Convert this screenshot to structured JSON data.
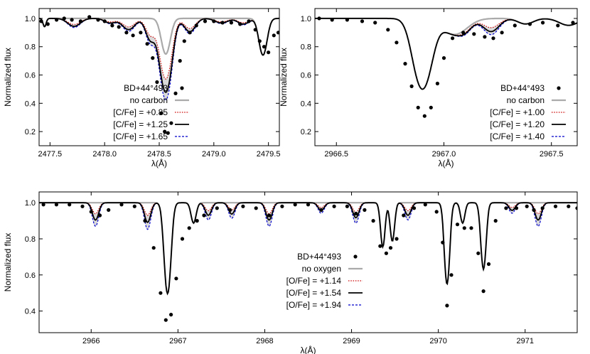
{
  "chart_data": [
    {
      "type": "line",
      "panel": "top-left",
      "xlabel": "λ(Å)",
      "ylabel": "Normalized flux",
      "xlim": [
        2477.4,
        2479.6
      ],
      "ylim": [
        0.1,
        1.07
      ],
      "xticks": [
        2477.5,
        2478.0,
        2478.5,
        2479.0,
        2479.5
      ],
      "xtick_labels": [
        "2477.5",
        "2478.0",
        "2478.5",
        "2479.0",
        "2479.5"
      ],
      "yticks": [
        0.2,
        0.4,
        0.6,
        0.8,
        1.0
      ],
      "ytick_labels": [
        "0.2",
        "0.4",
        "0.6",
        "0.8",
        "1.0"
      ],
      "legend_position": "lower-left",
      "shaded_band": true,
      "reference": {
        "name": "no carbon",
        "color": "#aaaaaa",
        "lines": [
          {
            "c": 2478.56,
            "w": 0.055,
            "d": 0.29
          }
        ]
      },
      "series": [
        {
          "name": "[C/Fe] = +0.85",
          "color": "#cc0000",
          "dash": "1.5,1.8",
          "scale": 0.62
        },
        {
          "name": "[C/Fe] = +1.25",
          "color": "#000000",
          "dash": "",
          "scale": 0.82
        },
        {
          "name": "[C/Fe] = +1.65",
          "color": "#0000cc",
          "dash": "3,2",
          "scale": 0.95
        }
      ],
      "lines": [
        {
          "c": 2477.72,
          "w": 0.08,
          "d": 0.07
        },
        {
          "c": 2478.05,
          "w": 0.07,
          "d": 0.04
        },
        {
          "c": 2478.22,
          "w": 0.08,
          "d": 0.1
        },
        {
          "c": 2478.42,
          "w": 0.06,
          "d": 0.2
        },
        {
          "c": 2478.56,
          "w": 0.07,
          "d": 0.9
        },
        {
          "c": 2478.78,
          "w": 0.07,
          "d": 0.12
        },
        {
          "c": 2479.07,
          "w": 0.08,
          "d": 0.04
        },
        {
          "c": 2479.27,
          "w": 0.07,
          "d": 0.05
        }
      ],
      "points": [
        [
          2477.42,
          0.98
        ],
        [
          2477.48,
          0.96
        ],
        [
          2477.56,
          0.99
        ],
        [
          2477.63,
          1.0
        ],
        [
          2477.7,
          0.99
        ],
        [
          2477.78,
          0.98
        ],
        [
          2477.86,
          1.01
        ],
        [
          2477.94,
          0.99
        ],
        [
          2478.0,
          0.98
        ],
        [
          2478.07,
          0.95
        ],
        [
          2478.13,
          0.94
        ],
        [
          2478.2,
          0.9
        ],
        [
          2478.26,
          0.88
        ],
        [
          2478.33,
          0.9
        ],
        [
          2478.39,
          0.82
        ],
        [
          2478.44,
          0.72
        ],
        [
          2478.48,
          0.55
        ],
        [
          2478.52,
          0.33
        ],
        [
          2478.55,
          0.2
        ],
        [
          2478.58,
          0.19
        ],
        [
          2478.61,
          0.26
        ],
        [
          2478.65,
          0.47
        ],
        [
          2478.69,
          0.7
        ],
        [
          2478.73,
          0.84
        ],
        [
          2478.78,
          0.9
        ],
        [
          2478.84,
          0.95
        ],
        [
          2478.92,
          0.98
        ],
        [
          2479.0,
          0.98
        ],
        [
          2479.08,
          0.97
        ],
        [
          2479.16,
          0.97
        ],
        [
          2479.24,
          0.96
        ],
        [
          2479.32,
          0.98
        ],
        [
          2479.38,
          0.92
        ],
        [
          2479.42,
          0.84
        ],
        [
          2479.46,
          0.8
        ],
        [
          2479.5,
          0.76
        ],
        [
          2479.55,
          0.88
        ],
        [
          2479.59,
          0.9
        ]
      ],
      "strong_lines": [
        {
          "c": 2479.45,
          "w": 0.05,
          "d": 0.3
        },
        {
          "c": 2477.45,
          "w": 0.02,
          "d": 0.06
        }
      ],
      "legend": [
        "BD+44°493",
        "no carbon",
        "[C/Fe] = +0.85",
        "[C/Fe] = +1.25",
        "[C/Fe] = +1.65"
      ]
    },
    {
      "type": "line",
      "panel": "top-right",
      "xlabel": "λ(Å)",
      "ylabel": "Normalized flux",
      "xlim": [
        2966.4,
        2967.62
      ],
      "ylim": [
        0.1,
        1.07
      ],
      "xticks": [
        2966.5,
        2967.0,
        2967.5
      ],
      "xtick_labels": [
        "2966.5",
        "2967.0",
        "2967.5"
      ],
      "yticks": [
        0.2,
        0.4,
        0.6,
        0.8,
        1.0
      ],
      "ytick_labels": [
        "0.2",
        "0.4",
        "0.6",
        "0.8",
        "1.0"
      ],
      "legend_position": "lower-right",
      "shaded_band": true,
      "reference": {
        "name": "no carbon",
        "color": "#aaaaaa",
        "lines": []
      },
      "series": [
        {
          "name": "[C/Fe] = +1.00",
          "color": "#cc0000",
          "dash": "1.5,1.8",
          "scale": 0.55
        },
        {
          "name": "[C/Fe] = +1.20",
          "color": "#000000",
          "dash": "",
          "scale": 0.8
        },
        {
          "name": "[C/Fe] = +1.40",
          "color": "#0000cc",
          "dash": "3,2",
          "scale": 1.0
        }
      ],
      "lines": [
        {
          "c": 2967.22,
          "w": 0.05,
          "d": 0.12
        },
        {
          "c": 2967.1,
          "w": 0.04,
          "d": 0.04
        }
      ],
      "strong_lines": [
        {
          "c": 2966.9,
          "w": 0.055,
          "d": 0.69
        },
        {
          "c": 2967.05,
          "w": 0.08,
          "d": 0.12
        },
        {
          "c": 2967.38,
          "w": 0.05,
          "d": 0.04
        },
        {
          "c": 2967.58,
          "w": 0.06,
          "d": 0.05
        }
      ],
      "points": [
        [
          2966.42,
          1.0
        ],
        [
          2966.48,
          0.99
        ],
        [
          2966.55,
          0.99
        ],
        [
          2966.62,
          0.98
        ],
        [
          2966.68,
          0.97
        ],
        [
          2966.74,
          0.92
        ],
        [
          2966.78,
          0.83
        ],
        [
          2966.82,
          0.68
        ],
        [
          2966.85,
          0.52
        ],
        [
          2966.88,
          0.37
        ],
        [
          2966.91,
          0.31
        ],
        [
          2966.94,
          0.37
        ],
        [
          2966.97,
          0.54
        ],
        [
          2967.0,
          0.72
        ],
        [
          2967.04,
          0.86
        ],
        [
          2967.09,
          0.9
        ],
        [
          2967.14,
          0.89
        ],
        [
          2967.19,
          0.87
        ],
        [
          2967.23,
          0.86
        ],
        [
          2967.27,
          0.9
        ],
        [
          2967.33,
          0.95
        ],
        [
          2967.4,
          0.96
        ],
        [
          2967.46,
          0.97
        ],
        [
          2967.53,
          0.95
        ],
        [
          2967.6,
          0.97
        ]
      ],
      "legend": [
        "BD+44°493",
        "no carbon",
        "[C/Fe] = +1.00",
        "[C/Fe] = +1.20",
        "[C/Fe] = +1.40"
      ]
    },
    {
      "type": "line",
      "panel": "bottom",
      "xlabel": "λ(Å)",
      "ylabel": "Normalized flux",
      "xlim": [
        2965.4,
        2971.6
      ],
      "ylim": [
        0.28,
        1.06
      ],
      "xticks": [
        2966,
        2967,
        2968,
        2969,
        2970,
        2971
      ],
      "xtick_labels": [
        "2966",
        "2967",
        "2968",
        "2969",
        "2970",
        "2971"
      ],
      "yticks": [
        0.4,
        0.6,
        0.8,
        1.0
      ],
      "ytick_labels": [
        "0.4",
        "0.6",
        "0.8",
        "1.0"
      ],
      "legend_position": "center",
      "shaded_band": true,
      "reference": {
        "name": "no oxygen",
        "color": "#aaaaaa",
        "lines": []
      },
      "series": [
        {
          "name": "[O/Fe] = +1.14",
          "color": "#cc0000",
          "dash": "1.5,1.8",
          "scale": 0.45
        },
        {
          "name": "[O/Fe] = +1.54",
          "color": "#000000",
          "dash": "",
          "scale": 0.72
        },
        {
          "name": "[O/Fe] = +1.94",
          "color": "#0000cc",
          "dash": "3,2",
          "scale": 1.0
        }
      ],
      "lines": [
        {
          "c": 2966.05,
          "w": 0.05,
          "d": 0.14
        },
        {
          "c": 2966.65,
          "w": 0.05,
          "d": 0.16
        },
        {
          "c": 2967.35,
          "w": 0.05,
          "d": 0.1
        },
        {
          "c": 2967.62,
          "w": 0.05,
          "d": 0.09
        },
        {
          "c": 2968.05,
          "w": 0.05,
          "d": 0.14
        },
        {
          "c": 2968.65,
          "w": 0.05,
          "d": 0.06
        },
        {
          "c": 2969.05,
          "w": 0.05,
          "d": 0.12
        },
        {
          "c": 2969.65,
          "w": 0.05,
          "d": 0.1
        },
        {
          "c": 2970.85,
          "w": 0.05,
          "d": 0.06
        },
        {
          "c": 2971.15,
          "w": 0.05,
          "d": 0.14
        }
      ],
      "strong_lines": [
        {
          "c": 2966.88,
          "w": 0.05,
          "d": 0.7
        },
        {
          "c": 2967.18,
          "w": 0.04,
          "d": 0.12
        },
        {
          "c": 2969.36,
          "w": 0.035,
          "d": 0.28
        },
        {
          "c": 2969.47,
          "w": 0.035,
          "d": 0.24
        },
        {
          "c": 2970.1,
          "w": 0.04,
          "d": 0.6
        },
        {
          "c": 2970.28,
          "w": 0.035,
          "d": 0.12
        },
        {
          "c": 2970.52,
          "w": 0.04,
          "d": 0.46
        }
      ],
      "points": [
        [
          2965.45,
          0.99
        ],
        [
          2965.6,
          0.99
        ],
        [
          2965.75,
          0.99
        ],
        [
          2965.9,
          0.98
        ],
        [
          2966.0,
          0.95
        ],
        [
          2966.1,
          0.93
        ],
        [
          2966.2,
          0.96
        ],
        [
          2966.35,
          0.99
        ],
        [
          2966.5,
          0.98
        ],
        [
          2966.62,
          0.9
        ],
        [
          2966.72,
          0.75
        ],
        [
          2966.8,
          0.5
        ],
        [
          2966.86,
          0.35
        ],
        [
          2966.92,
          0.38
        ],
        [
          2966.98,
          0.58
        ],
        [
          2967.05,
          0.8
        ],
        [
          2967.13,
          0.86
        ],
        [
          2967.22,
          0.9
        ],
        [
          2967.3,
          0.93
        ],
        [
          2967.45,
          0.97
        ],
        [
          2967.6,
          0.96
        ],
        [
          2967.75,
          0.98
        ],
        [
          2967.9,
          0.97
        ],
        [
          2968.05,
          0.93
        ],
        [
          2968.2,
          0.98
        ],
        [
          2968.35,
          0.99
        ],
        [
          2968.5,
          0.99
        ],
        [
          2968.65,
          0.96
        ],
        [
          2968.8,
          0.98
        ],
        [
          2968.95,
          0.98
        ],
        [
          2969.05,
          0.94
        ],
        [
          2969.15,
          0.96
        ],
        [
          2969.25,
          0.9
        ],
        [
          2969.33,
          0.76
        ],
        [
          2969.4,
          0.72
        ],
        [
          2969.45,
          0.75
        ],
        [
          2969.52,
          0.8
        ],
        [
          2969.6,
          0.93
        ],
        [
          2969.72,
          0.97
        ],
        [
          2969.85,
          0.99
        ],
        [
          2969.98,
          0.95
        ],
        [
          2970.05,
          0.78
        ],
        [
          2970.1,
          0.43
        ],
        [
          2970.15,
          0.6
        ],
        [
          2970.22,
          0.88
        ],
        [
          2970.3,
          0.86
        ],
        [
          2970.38,
          0.86
        ],
        [
          2970.46,
          0.72
        ],
        [
          2970.52,
          0.51
        ],
        [
          2970.58,
          0.66
        ],
        [
          2970.66,
          0.9
        ],
        [
          2970.78,
          0.97
        ],
        [
          2970.9,
          0.97
        ],
        [
          2971.02,
          0.98
        ],
        [
          2971.1,
          0.96
        ],
        [
          2971.2,
          0.97
        ],
        [
          2971.35,
          0.98
        ],
        [
          2971.5,
          0.98
        ],
        [
          2971.6,
          0.97
        ]
      ],
      "legend": [
        "BD+44°493",
        "no oxygen",
        "[O/Fe] = +1.14",
        "[O/Fe] = +1.54",
        "[O/Fe] = +1.94"
      ]
    }
  ]
}
